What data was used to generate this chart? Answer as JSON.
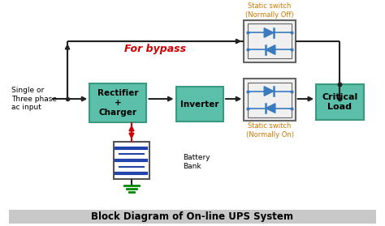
{
  "title": "Block Diagram of On-line UPS System",
  "box_color": "#5bbfaa",
  "box_edge": "#3a9a80",
  "static_switch_edge": "#666666",
  "static_switch_fill": "#f0f0f0",
  "diode_color": "#3a7abf",
  "line_color": "#222222",
  "bypass_color": "#cc0000",
  "bypass_label": "For bypass",
  "label_static_off": "Static switch\n(Normally Off)",
  "label_static_on": "Static switch\n(Normally On)",
  "label_rectifier": "Rectifier\n+\nCharger",
  "label_inverter": "Inverter",
  "label_critical": "Critical\nLoad",
  "label_battery": "Battery\nBank",
  "label_input": "Single or\nThree phase\nac input",
  "orange_color": "#cc7700",
  "arrow_red": "#cc0000",
  "ground_color": "#008800",
  "title_bg": "#c8c8c8"
}
